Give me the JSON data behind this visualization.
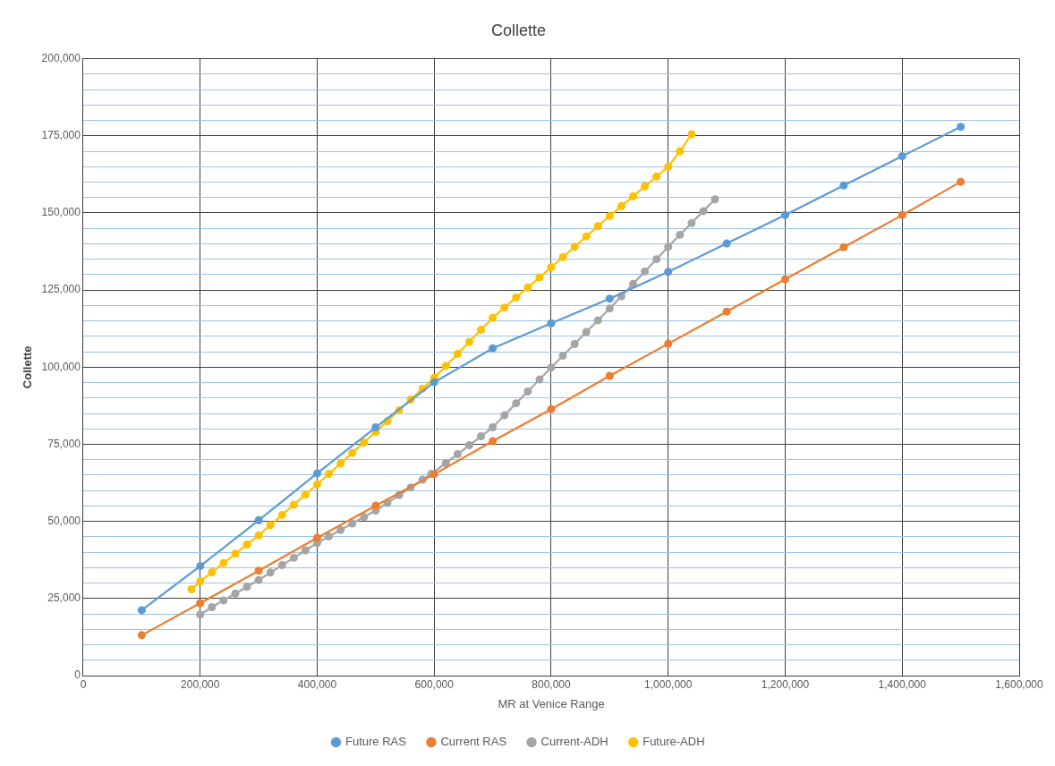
{
  "chart_data": {
    "type": "line",
    "title": "Collette",
    "xlabel": "MR at Venice Range",
    "ylabel": "Collette",
    "xlim": [
      0,
      1600000
    ],
    "xticks": [
      0,
      {
        "value": 200000,
        "label": "200,000"
      },
      {
        "value": 400000,
        "label": "400,000"
      },
      {
        "value": 600000,
        "label": "600,000"
      },
      {
        "value": 800000,
        "label": "800,000"
      },
      {
        "value": 1000000,
        "label": "1,000,000"
      },
      {
        "value": 1200000,
        "label": "1,200,000"
      },
      {
        "value": 1400000,
        "label": "1,400,000"
      },
      {
        "value": 1600000,
        "label": "1,600,000"
      }
    ],
    "ylim": [
      0,
      200000
    ],
    "yticks": [
      0,
      {
        "value": 5000,
        "label": null
      },
      {
        "value": 10000,
        "label": null
      },
      {
        "value": 15000,
        "label": null
      },
      {
        "value": 20000,
        "label": null
      },
      {
        "value": 25000,
        "label": "25,000"
      },
      {
        "value": 30000,
        "label": null
      },
      {
        "value": 35000,
        "label": null
      },
      {
        "value": 40000,
        "label": null
      },
      {
        "value": 45000,
        "label": null
      },
      {
        "value": 50000,
        "label": "50,000"
      },
      {
        "value": 55000,
        "label": null
      },
      {
        "value": 60000,
        "label": null
      },
      {
        "value": 65000,
        "label": null
      },
      {
        "value": 70000,
        "label": null
      },
      {
        "value": 75000,
        "label": "75,000"
      },
      {
        "value": 80000,
        "label": null
      },
      {
        "value": 85000,
        "label": null
      },
      {
        "value": 90000,
        "label": null
      },
      {
        "value": 95000,
        "label": null
      },
      {
        "value": 100000,
        "label": "100,000"
      },
      {
        "value": 105000,
        "label": null
      },
      {
        "value": 110000,
        "label": null
      },
      {
        "value": 115000,
        "label": null
      },
      {
        "value": 120000,
        "label": null
      },
      {
        "value": 125000,
        "label": "125,000"
      },
      {
        "value": 130000,
        "label": null
      },
      {
        "value": 135000,
        "label": null
      },
      {
        "value": 140000,
        "label": null
      },
      {
        "value": 145000,
        "label": null
      },
      {
        "value": 150000,
        "label": "150,000"
      },
      {
        "value": 155000,
        "label": null
      },
      {
        "value": 160000,
        "label": null
      },
      {
        "value": 165000,
        "label": null
      },
      {
        "value": 170000,
        "label": null
      },
      {
        "value": 175000,
        "label": "175,000"
      },
      {
        "value": 180000,
        "label": null
      },
      {
        "value": 185000,
        "label": null
      },
      {
        "value": 190000,
        "label": null
      },
      {
        "value": 195000,
        "label": null
      },
      {
        "value": 200000,
        "label": "200,000"
      }
    ],
    "grid": true,
    "legend": "bottom",
    "marker": "circle",
    "line_style": "solid",
    "series": [
      {
        "name": "Future RAS",
        "color": "#5b9bd5",
        "x": [
          100000,
          200000,
          300000,
          400000,
          500000,
          600000,
          700000,
          800000,
          900000,
          1000000,
          1100000,
          1200000,
          1300000,
          1400000,
          1500000
        ],
        "values": [
          21200,
          35500,
          50400,
          65600,
          80500,
          95100,
          106100,
          114200,
          122200,
          130900,
          140100,
          149300,
          158900,
          168400,
          177900
        ]
      },
      {
        "name": "Current RAS",
        "color": "#ed7d31",
        "x": [
          100000,
          200000,
          300000,
          400000,
          500000,
          600000,
          700000,
          800000,
          900000,
          1000000,
          1100000,
          1200000,
          1300000,
          1400000,
          1500000
        ],
        "values": [
          13100,
          23500,
          34000,
          44700,
          55100,
          65300,
          76000,
          86400,
          97200,
          107600,
          118000,
          128500,
          138900,
          149300,
          160100
        ]
      },
      {
        "name": "Current-ADH",
        "color": "#a5a5a5",
        "x": [
          200000,
          220000,
          240000,
          260000,
          280000,
          300000,
          320000,
          340000,
          360000,
          380000,
          400000,
          420000,
          440000,
          460000,
          480000,
          500000,
          520000,
          540000,
          560000,
          580000,
          595000,
          620000,
          640000,
          660000,
          680000,
          700000,
          720000,
          740000,
          760000,
          780000,
          800000,
          820000,
          840000,
          860000,
          880000,
          900000,
          920000,
          940000,
          960000,
          980000,
          1000000,
          1020000,
          1040000,
          1060000,
          1080000
        ],
        "values": [
          19800,
          22200,
          24400,
          26600,
          28800,
          31000,
          33400,
          35800,
          38200,
          40600,
          43000,
          45100,
          47200,
          49300,
          51400,
          53500,
          56000,
          58500,
          61000,
          63500,
          65400,
          68900,
          71800,
          74700,
          77600,
          80500,
          84400,
          88300,
          92100,
          96000,
          99900,
          103700,
          107500,
          111400,
          115200,
          119000,
          123000,
          127000,
          131000,
          135000,
          139000,
          142900,
          146700,
          150600,
          154400
        ]
      },
      {
        "name": "Future-ADH",
        "color": "#ffc000",
        "x": [
          185000,
          200000,
          220000,
          240000,
          260000,
          280000,
          300000,
          320000,
          340000,
          360000,
          380000,
          400000,
          420000,
          440000,
          460000,
          480000,
          500000,
          520000,
          540000,
          560000,
          580000,
          600000,
          620000,
          640000,
          660000,
          680000,
          700000,
          720000,
          740000,
          760000,
          780000,
          800000,
          820000,
          840000,
          860000,
          880000,
          900000,
          920000,
          940000,
          960000,
          980000,
          1000000,
          1020000,
          1040000
        ],
        "values": [
          28000,
          30500,
          33500,
          36500,
          39500,
          42500,
          45500,
          48800,
          52100,
          55400,
          58700,
          62000,
          65400,
          68800,
          72200,
          75600,
          79000,
          82500,
          86000,
          89500,
          93000,
          96500,
          100400,
          104300,
          108200,
          112100,
          116000,
          119300,
          122600,
          125800,
          129100,
          132400,
          135700,
          139000,
          142400,
          145700,
          149000,
          152200,
          155400,
          158600,
          161800,
          165000,
          170000,
          175500
        ]
      }
    ]
  }
}
